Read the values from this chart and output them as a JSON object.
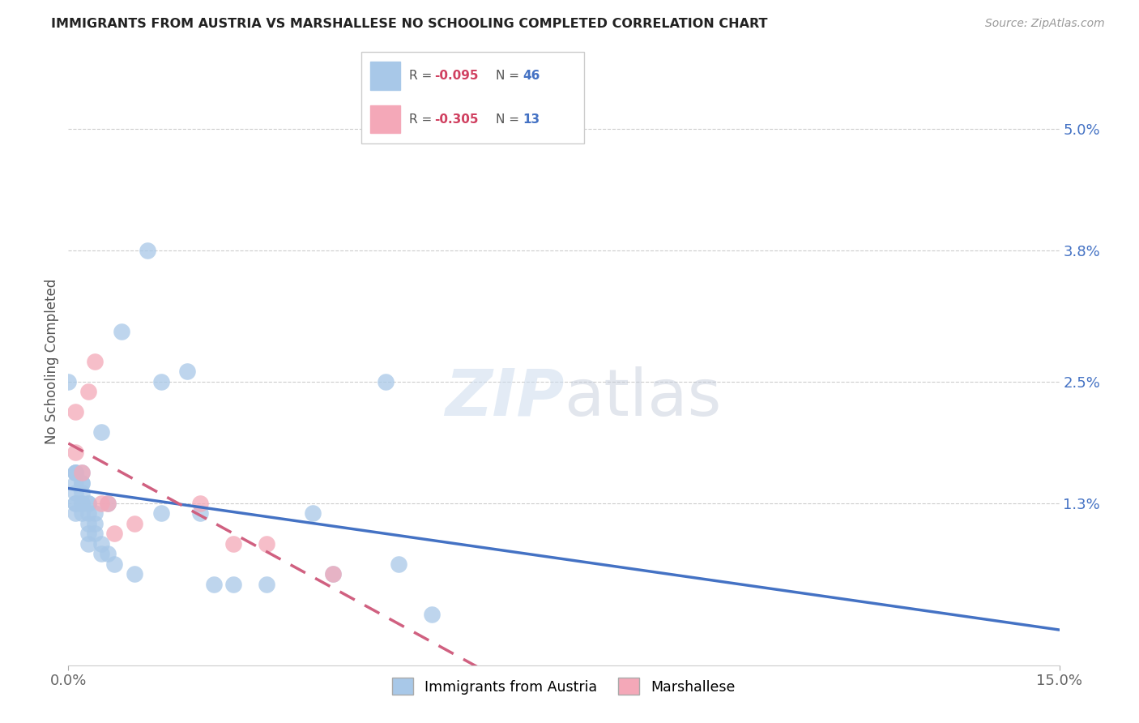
{
  "title": "IMMIGRANTS FROM AUSTRIA VS MARSHALLESE NO SCHOOLING COMPLETED CORRELATION CHART",
  "source": "Source: ZipAtlas.com",
  "ylabel": "No Schooling Completed",
  "ytick_labels": [
    "5.0%",
    "3.8%",
    "2.5%",
    "1.3%"
  ],
  "ytick_values": [
    0.05,
    0.038,
    0.025,
    0.013
  ],
  "xlim": [
    0.0,
    0.15
  ],
  "ylim": [
    -0.003,
    0.057
  ],
  "austria_R": -0.095,
  "austria_N": 46,
  "marshallese_R": -0.305,
  "marshallese_N": 13,
  "austria_color": "#a8c8e8",
  "marshallese_color": "#f4a8b8",
  "austria_line_color": "#4472c4",
  "marshallese_line_color": "#d06080",
  "austria_x": [
    0.0,
    0.001,
    0.001,
    0.001,
    0.001,
    0.001,
    0.001,
    0.001,
    0.001,
    0.002,
    0.002,
    0.002,
    0.002,
    0.002,
    0.002,
    0.002,
    0.003,
    0.003,
    0.003,
    0.003,
    0.003,
    0.003,
    0.004,
    0.004,
    0.004,
    0.005,
    0.005,
    0.005,
    0.006,
    0.006,
    0.007,
    0.008,
    0.01,
    0.012,
    0.014,
    0.014,
    0.018,
    0.02,
    0.022,
    0.025,
    0.03,
    0.037,
    0.04,
    0.048,
    0.05,
    0.055
  ],
  "austria_y": [
    0.025,
    0.016,
    0.016,
    0.015,
    0.014,
    0.013,
    0.013,
    0.012,
    0.016,
    0.015,
    0.015,
    0.014,
    0.013,
    0.013,
    0.012,
    0.016,
    0.013,
    0.013,
    0.012,
    0.011,
    0.01,
    0.009,
    0.012,
    0.011,
    0.01,
    0.009,
    0.008,
    0.02,
    0.008,
    0.013,
    0.007,
    0.03,
    0.006,
    0.038,
    0.025,
    0.012,
    0.026,
    0.012,
    0.005,
    0.005,
    0.005,
    0.012,
    0.006,
    0.025,
    0.007,
    0.002
  ],
  "marshallese_x": [
    0.001,
    0.001,
    0.002,
    0.003,
    0.004,
    0.005,
    0.006,
    0.007,
    0.01,
    0.02,
    0.025,
    0.03,
    0.04
  ],
  "marshallese_y": [
    0.022,
    0.018,
    0.016,
    0.024,
    0.027,
    0.013,
    0.013,
    0.01,
    0.011,
    0.013,
    0.009,
    0.009,
    0.006
  ],
  "legend_austria_text": "R = -0.095   N = 46",
  "legend_marshallese_text": "R = -0.305   N = 13"
}
